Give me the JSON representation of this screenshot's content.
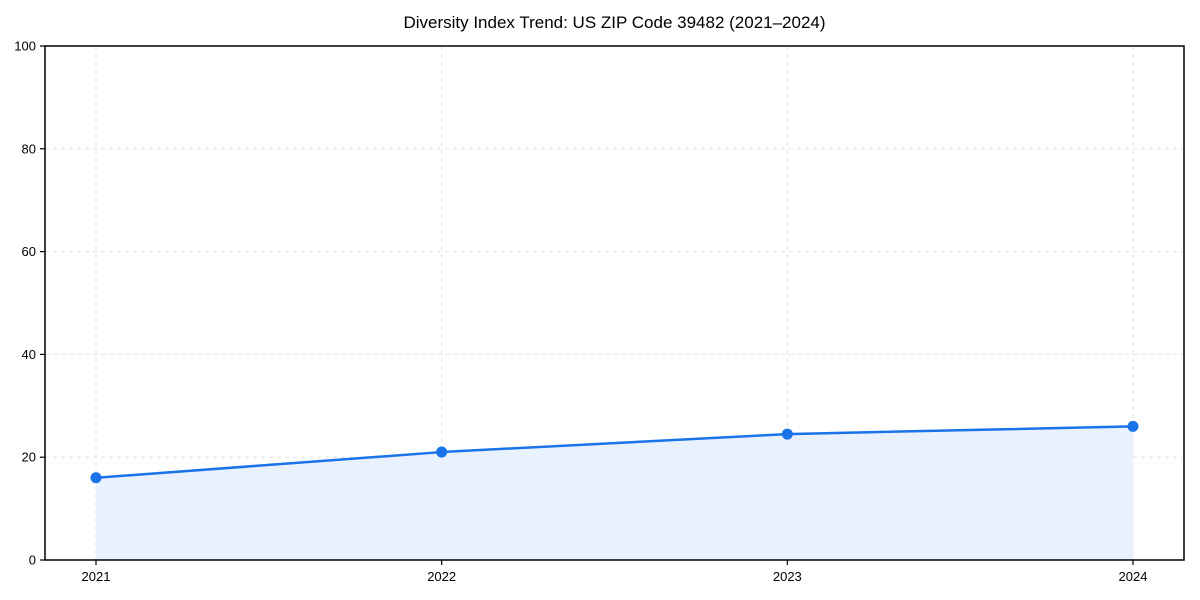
{
  "chart_data": {
    "type": "area",
    "title": "Diversity Index Trend: US ZIP Code 39482 (2021–2024)",
    "x": [
      "2021",
      "2022",
      "2023",
      "2024"
    ],
    "series": [
      {
        "name": "Diversity Index",
        "values": [
          16,
          21,
          24.5,
          26
        ]
      }
    ],
    "xlabel": "",
    "ylabel": "",
    "ylim": [
      0,
      100
    ],
    "yticks": [
      0,
      20,
      40,
      60,
      80,
      100
    ],
    "grid": "dashed-both-axes",
    "legend_position": "none",
    "marker": "circle",
    "colors": {
      "line": "#1a73e8",
      "marker": "#1a73e8",
      "area_fill": "#e8f1fd",
      "grid": "#e0e0e0",
      "axis": "#000000",
      "tick_label": "#000000",
      "title": "#000000"
    }
  }
}
